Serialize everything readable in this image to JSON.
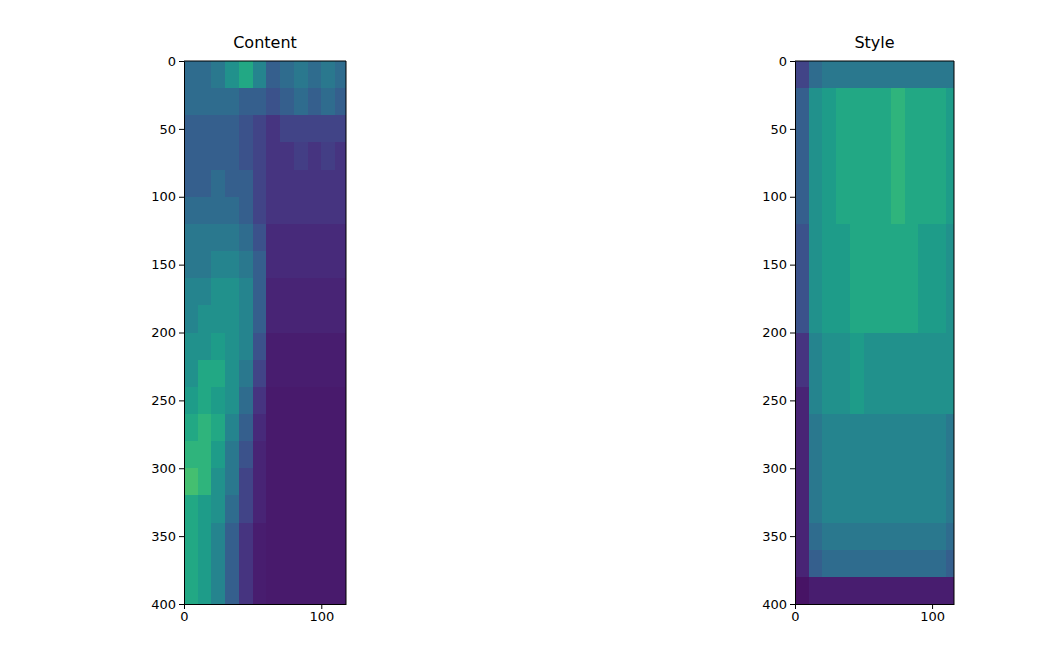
{
  "chart_data": [
    {
      "type": "heatmap",
      "title": "Content",
      "color": "viridis",
      "xlim": [
        0,
        118
      ],
      "ylim": [
        400,
        0
      ],
      "xticks": [
        0,
        100
      ],
      "yticks": [
        0,
        50,
        100,
        150,
        200,
        250,
        300,
        350,
        400
      ],
      "x_edges": [
        0,
        10,
        20,
        30,
        40,
        50,
        60,
        70,
        80,
        90,
        100,
        110,
        120
      ],
      "y_edges": [
        0,
        20,
        40,
        60,
        80,
        100,
        120,
        140,
        160,
        180,
        200,
        220,
        240,
        260,
        280,
        300,
        320,
        340,
        360,
        380,
        400
      ],
      "value_range": [
        0,
        1
      ],
      "cells": [
        [
          0.35,
          0.35,
          0.4,
          0.5,
          0.6,
          0.45,
          0.3,
          0.35,
          0.4,
          0.35,
          0.4,
          0.35
        ],
        [
          0.35,
          0.35,
          0.35,
          0.35,
          0.3,
          0.3,
          0.25,
          0.3,
          0.35,
          0.3,
          0.35,
          0.3
        ],
        [
          0.3,
          0.3,
          0.3,
          0.3,
          0.25,
          0.2,
          0.15,
          0.2,
          0.2,
          0.2,
          0.2,
          0.2
        ],
        [
          0.3,
          0.3,
          0.3,
          0.3,
          0.25,
          0.2,
          0.15,
          0.15,
          0.18,
          0.15,
          0.18,
          0.15
        ],
        [
          0.3,
          0.3,
          0.35,
          0.3,
          0.3,
          0.2,
          0.15,
          0.15,
          0.15,
          0.15,
          0.15,
          0.15
        ],
        [
          0.35,
          0.35,
          0.35,
          0.35,
          0.3,
          0.2,
          0.15,
          0.15,
          0.15,
          0.15,
          0.15,
          0.15
        ],
        [
          0.4,
          0.4,
          0.4,
          0.4,
          0.35,
          0.25,
          0.12,
          0.12,
          0.12,
          0.12,
          0.12,
          0.12
        ],
        [
          0.4,
          0.4,
          0.45,
          0.45,
          0.4,
          0.3,
          0.12,
          0.12,
          0.12,
          0.12,
          0.12,
          0.12
        ],
        [
          0.45,
          0.45,
          0.5,
          0.5,
          0.45,
          0.3,
          0.1,
          0.1,
          0.1,
          0.1,
          0.1,
          0.1
        ],
        [
          0.45,
          0.5,
          0.5,
          0.5,
          0.45,
          0.3,
          0.1,
          0.1,
          0.1,
          0.1,
          0.1,
          0.1
        ],
        [
          0.5,
          0.5,
          0.55,
          0.5,
          0.45,
          0.25,
          0.08,
          0.08,
          0.08,
          0.08,
          0.08,
          0.08
        ],
        [
          0.5,
          0.6,
          0.6,
          0.5,
          0.4,
          0.2,
          0.08,
          0.08,
          0.08,
          0.08,
          0.08,
          0.08
        ],
        [
          0.55,
          0.6,
          0.55,
          0.5,
          0.35,
          0.15,
          0.07,
          0.07,
          0.07,
          0.07,
          0.07,
          0.07
        ],
        [
          0.6,
          0.65,
          0.6,
          0.45,
          0.3,
          0.12,
          0.07,
          0.07,
          0.07,
          0.07,
          0.07,
          0.07
        ],
        [
          0.65,
          0.65,
          0.55,
          0.4,
          0.25,
          0.1,
          0.07,
          0.07,
          0.07,
          0.07,
          0.07,
          0.07
        ],
        [
          0.7,
          0.65,
          0.5,
          0.4,
          0.2,
          0.1,
          0.07,
          0.07,
          0.07,
          0.07,
          0.07,
          0.07
        ],
        [
          0.6,
          0.55,
          0.5,
          0.35,
          0.2,
          0.1,
          0.07,
          0.07,
          0.07,
          0.07,
          0.07,
          0.07
        ],
        [
          0.6,
          0.55,
          0.45,
          0.3,
          0.15,
          0.08,
          0.07,
          0.07,
          0.07,
          0.07,
          0.07,
          0.07
        ],
        [
          0.6,
          0.55,
          0.45,
          0.3,
          0.15,
          0.08,
          0.07,
          0.07,
          0.07,
          0.07,
          0.07,
          0.07
        ],
        [
          0.6,
          0.55,
          0.45,
          0.3,
          0.15,
          0.08,
          0.07,
          0.07,
          0.07,
          0.07,
          0.07,
          0.07
        ]
      ]
    },
    {
      "type": "heatmap",
      "title": "Style",
      "color": "viridis",
      "xlim": [
        0,
        116
      ],
      "ylim": [
        400,
        0
      ],
      "xticks": [
        0,
        100
      ],
      "yticks": [
        0,
        50,
        100,
        150,
        200,
        250,
        300,
        350,
        400
      ],
      "x_edges": [
        0,
        10,
        20,
        30,
        40,
        50,
        60,
        70,
        80,
        90,
        100,
        110,
        120
      ],
      "y_edges": [
        0,
        20,
        40,
        60,
        80,
        100,
        120,
        140,
        160,
        180,
        200,
        220,
        240,
        260,
        280,
        300,
        320,
        340,
        360,
        380,
        400
      ],
      "value_range": [
        0,
        1
      ],
      "cells": [
        [
          0.2,
          0.35,
          0.4,
          0.4,
          0.4,
          0.4,
          0.4,
          0.4,
          0.4,
          0.4,
          0.4,
          0.4
        ],
        [
          0.3,
          0.5,
          0.55,
          0.6,
          0.6,
          0.6,
          0.6,
          0.65,
          0.6,
          0.6,
          0.6,
          0.55
        ],
        [
          0.3,
          0.5,
          0.55,
          0.6,
          0.6,
          0.6,
          0.6,
          0.65,
          0.6,
          0.6,
          0.6,
          0.55
        ],
        [
          0.3,
          0.5,
          0.55,
          0.6,
          0.6,
          0.6,
          0.6,
          0.65,
          0.6,
          0.6,
          0.6,
          0.55
        ],
        [
          0.3,
          0.5,
          0.55,
          0.6,
          0.6,
          0.6,
          0.6,
          0.65,
          0.6,
          0.6,
          0.6,
          0.55
        ],
        [
          0.3,
          0.5,
          0.55,
          0.6,
          0.6,
          0.6,
          0.6,
          0.65,
          0.6,
          0.6,
          0.6,
          0.55
        ],
        [
          0.25,
          0.5,
          0.55,
          0.55,
          0.6,
          0.6,
          0.6,
          0.6,
          0.6,
          0.55,
          0.55,
          0.5
        ],
        [
          0.25,
          0.5,
          0.55,
          0.55,
          0.6,
          0.6,
          0.6,
          0.6,
          0.6,
          0.55,
          0.55,
          0.5
        ],
        [
          0.25,
          0.5,
          0.55,
          0.55,
          0.6,
          0.6,
          0.6,
          0.6,
          0.6,
          0.55,
          0.55,
          0.5
        ],
        [
          0.25,
          0.5,
          0.55,
          0.55,
          0.6,
          0.6,
          0.6,
          0.6,
          0.6,
          0.55,
          0.55,
          0.5
        ],
        [
          0.15,
          0.45,
          0.5,
          0.5,
          0.55,
          0.5,
          0.5,
          0.5,
          0.5,
          0.5,
          0.5,
          0.5
        ],
        [
          0.15,
          0.45,
          0.5,
          0.5,
          0.55,
          0.5,
          0.5,
          0.5,
          0.5,
          0.5,
          0.5,
          0.5
        ],
        [
          0.1,
          0.45,
          0.5,
          0.5,
          0.55,
          0.5,
          0.5,
          0.5,
          0.5,
          0.5,
          0.5,
          0.5
        ],
        [
          0.1,
          0.4,
          0.45,
          0.45,
          0.45,
          0.45,
          0.45,
          0.45,
          0.45,
          0.45,
          0.45,
          0.4
        ],
        [
          0.1,
          0.4,
          0.45,
          0.45,
          0.45,
          0.45,
          0.45,
          0.45,
          0.45,
          0.45,
          0.45,
          0.4
        ],
        [
          0.1,
          0.4,
          0.45,
          0.45,
          0.45,
          0.45,
          0.45,
          0.45,
          0.45,
          0.45,
          0.45,
          0.4
        ],
        [
          0.1,
          0.4,
          0.45,
          0.45,
          0.45,
          0.45,
          0.45,
          0.45,
          0.45,
          0.45,
          0.45,
          0.4
        ],
        [
          0.1,
          0.35,
          0.4,
          0.4,
          0.4,
          0.4,
          0.4,
          0.4,
          0.4,
          0.4,
          0.4,
          0.35
        ],
        [
          0.1,
          0.3,
          0.35,
          0.35,
          0.35,
          0.35,
          0.35,
          0.35,
          0.35,
          0.35,
          0.35,
          0.3
        ],
        [
          0.05,
          0.08,
          0.08,
          0.08,
          0.08,
          0.08,
          0.08,
          0.08,
          0.08,
          0.08,
          0.08,
          0.08
        ]
      ]
    }
  ]
}
